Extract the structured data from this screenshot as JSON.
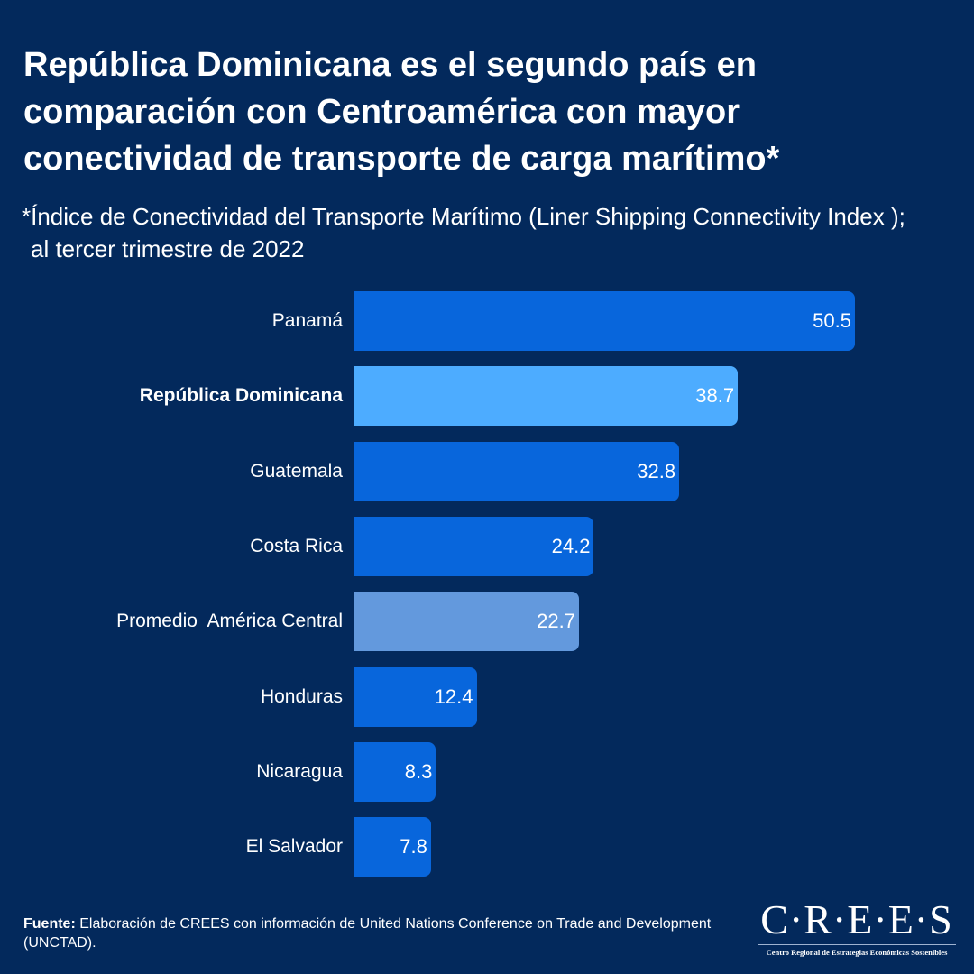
{
  "title": "República Dominicana es el segundo país en comparación con Centroamérica con mayor conectividad de transporte de carga marítimo*",
  "subtitle_line1": "*Índice de Conectividad del Transporte Marítimo (Liner Shipping Connectivity Index );",
  "subtitle_line2": "al tercer trimestre de 2022",
  "chart_data": {
    "type": "bar",
    "orientation": "horizontal",
    "categories": [
      "Panamá",
      "República Dominicana",
      "Guatemala",
      "Costa Rica",
      "Promedio  América Central",
      "Honduras",
      "Nicaragua",
      "El Salvador"
    ],
    "values": [
      50.5,
      38.7,
      32.8,
      24.2,
      22.7,
      12.4,
      8.3,
      7.8
    ],
    "highlight": "República Dominicana",
    "colors": {
      "default": "#0866dc",
      "highlight": "#4dacff",
      "average": "#6399dd"
    },
    "grid": false
  },
  "source": {
    "label": "Fuente:",
    "text": " Elaboración de CREES con información de United Nations Conference on Trade and Development (UNCTAD)."
  },
  "logo": {
    "name": "C·R·E·E·S",
    "tagline": "Centro Regional de Estrategias Económicas Sostenibles"
  }
}
